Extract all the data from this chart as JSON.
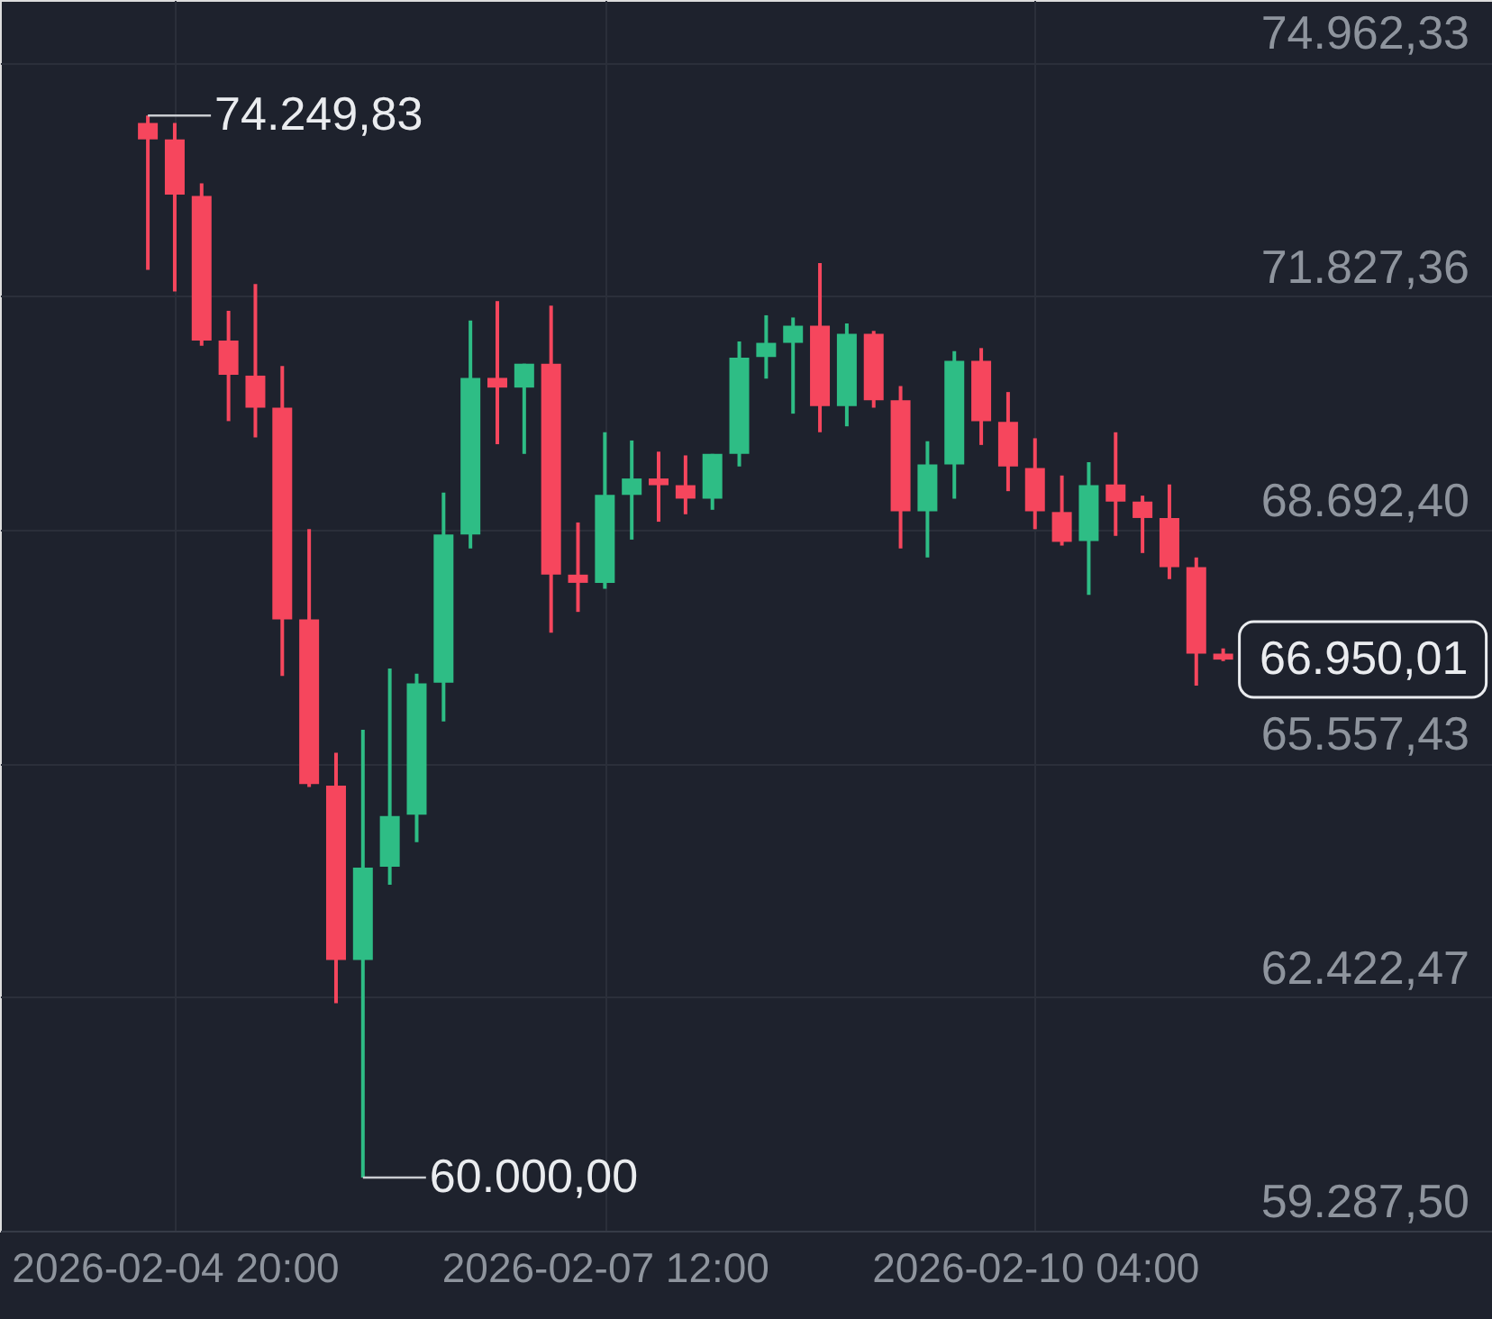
{
  "chart_data": {
    "type": "candlestick",
    "x": [
      "2026-02-04T16:00",
      "2026-02-04T20:00",
      "2026-02-05T00:00",
      "2026-02-05T04:00",
      "2026-02-05T08:00",
      "2026-02-05T12:00",
      "2026-02-05T16:00",
      "2026-02-05T20:00",
      "2026-02-06T00:00",
      "2026-02-06T04:00",
      "2026-02-06T08:00",
      "2026-02-06T12:00",
      "2026-02-06T16:00",
      "2026-02-06T20:00",
      "2026-02-07T00:00",
      "2026-02-07T04:00",
      "2026-02-07T08:00",
      "2026-02-07T12:00",
      "2026-02-07T16:00",
      "2026-02-07T20:00",
      "2026-02-08T00:00",
      "2026-02-08T04:00",
      "2026-02-08T08:00",
      "2026-02-08T12:00",
      "2026-02-08T16:00",
      "2026-02-08T20:00",
      "2026-02-09T00:00",
      "2026-02-09T04:00",
      "2026-02-09T08:00",
      "2026-02-09T12:00",
      "2026-02-09T16:00",
      "2026-02-09T20:00",
      "2026-02-10T00:00",
      "2026-02-10T04:00",
      "2026-02-10T08:00",
      "2026-02-10T12:00",
      "2026-02-10T16:00",
      "2026-02-10T20:00",
      "2026-02-11T00:00",
      "2026-02-11T04:00",
      "2026-02-11T08:00"
    ],
    "ohlc": [
      [
        74150,
        74249.83,
        72180,
        73930
      ],
      [
        73930,
        74150,
        71890,
        73190
      ],
      [
        73170,
        73340,
        71160,
        71230
      ],
      [
        71230,
        71630,
        70150,
        70770
      ],
      [
        70760,
        71990,
        69930,
        70330
      ],
      [
        70330,
        70890,
        66730,
        67490
      ],
      [
        67490,
        68700,
        65240,
        65280
      ],
      [
        65260,
        65700,
        62340,
        62920
      ],
      [
        62920,
        66010,
        60000.0,
        64160
      ],
      [
        64170,
        66830,
        63930,
        64850
      ],
      [
        64870,
        66760,
        64500,
        66630
      ],
      [
        66640,
        69190,
        66120,
        68630
      ],
      [
        68630,
        71500,
        68440,
        70730
      ],
      [
        70730,
        71760,
        69840,
        70600
      ],
      [
        70600,
        70920,
        69710,
        70920
      ],
      [
        70920,
        71700,
        67310,
        68090
      ],
      [
        68090,
        68790,
        67590,
        67980
      ],
      [
        67980,
        70000,
        67900,
        69160
      ],
      [
        69160,
        69890,
        68560,
        69380
      ],
      [
        69380,
        69740,
        68800,
        69290
      ],
      [
        69290,
        69690,
        68900,
        69110
      ],
      [
        69110,
        69710,
        68960,
        69710
      ],
      [
        69710,
        71220,
        69540,
        71000
      ],
      [
        71010,
        71570,
        70720,
        71200
      ],
      [
        71200,
        71540,
        70250,
        71430
      ],
      [
        71430,
        72270,
        70000,
        70350
      ],
      [
        70350,
        71460,
        70080,
        71320
      ],
      [
        71320,
        71360,
        70330,
        70430
      ],
      [
        70430,
        70620,
        68440,
        68940
      ],
      [
        68940,
        69880,
        68320,
        69570
      ],
      [
        69570,
        71090,
        69110,
        70960
      ],
      [
        70960,
        71130,
        69830,
        70150
      ],
      [
        70140,
        70540,
        69210,
        69540
      ],
      [
        69520,
        69920,
        68700,
        68940
      ],
      [
        68930,
        69420,
        68480,
        68530
      ],
      [
        68540,
        69600,
        67820,
        69290
      ],
      [
        69300,
        70000,
        68610,
        69070
      ],
      [
        69070,
        69150,
        68380,
        68850
      ],
      [
        68850,
        69300,
        68030,
        68190
      ],
      [
        68190,
        68320,
        66600,
        67030
      ],
      [
        67030,
        67100,
        66930,
        66950.01
      ]
    ],
    "colors": [
      "#f6465d",
      "#f6465d",
      "#f6465d",
      "#f6465d",
      "#f6465d",
      "#f6465d",
      "#f6465d",
      "#f6465d",
      "#2ebd85",
      "#2ebd85",
      "#2ebd85",
      "#2ebd85",
      "#2ebd85",
      "#f6465d",
      "#2ebd85",
      "#f6465d",
      "#f6465d",
      "#2ebd85",
      "#2ebd85",
      "#f6465d",
      "#f6465d",
      "#2ebd85",
      "#2ebd85",
      "#2ebd85",
      "#2ebd85",
      "#f6465d",
      "#2ebd85",
      "#f6465d",
      "#f6465d",
      "#2ebd85",
      "#2ebd85",
      "#f6465d",
      "#f6465d",
      "#f6465d",
      "#f6465d",
      "#2ebd85",
      "#f6465d",
      "#f6465d",
      "#f6465d",
      "#f6465d",
      "#f6465d"
    ],
    "xlim": [
      "2026-02-03T18:00",
      "2026-02-13T00:00"
    ],
    "xticks": [
      {
        "value": "2026-02-04T20:00",
        "label": "2026-02-04 20:00"
      },
      {
        "value": "2026-02-07T12:00",
        "label": "2026-02-07 12:00"
      },
      {
        "value": "2026-02-10T04:00",
        "label": "2026-02-10 04:00"
      }
    ],
    "ylim": [
      59287.5,
      75800
    ],
    "yticks": [
      {
        "value": 59287.5,
        "label": "59.287,50"
      },
      {
        "value": 62422.47,
        "label": "62.422,47"
      },
      {
        "value": 65557.43,
        "label": "65.557,43"
      },
      {
        "value": 68692.4,
        "label": "68.692,40"
      },
      {
        "value": 71827.36,
        "label": "71.827,36"
      },
      {
        "value": 74962.33,
        "label": "74.962,33"
      }
    ],
    "grid": true,
    "annotations": [
      {
        "text": "74.249,83",
        "x": "2026-02-04T16:00",
        "y": 74249.83
      },
      {
        "text": "60.000,00",
        "x": "2026-02-06T00:00",
        "y": 60000.0
      },
      {
        "text": "66.950,01",
        "x": "2026-02-11T08:00",
        "y": 66950.01
      }
    ]
  }
}
